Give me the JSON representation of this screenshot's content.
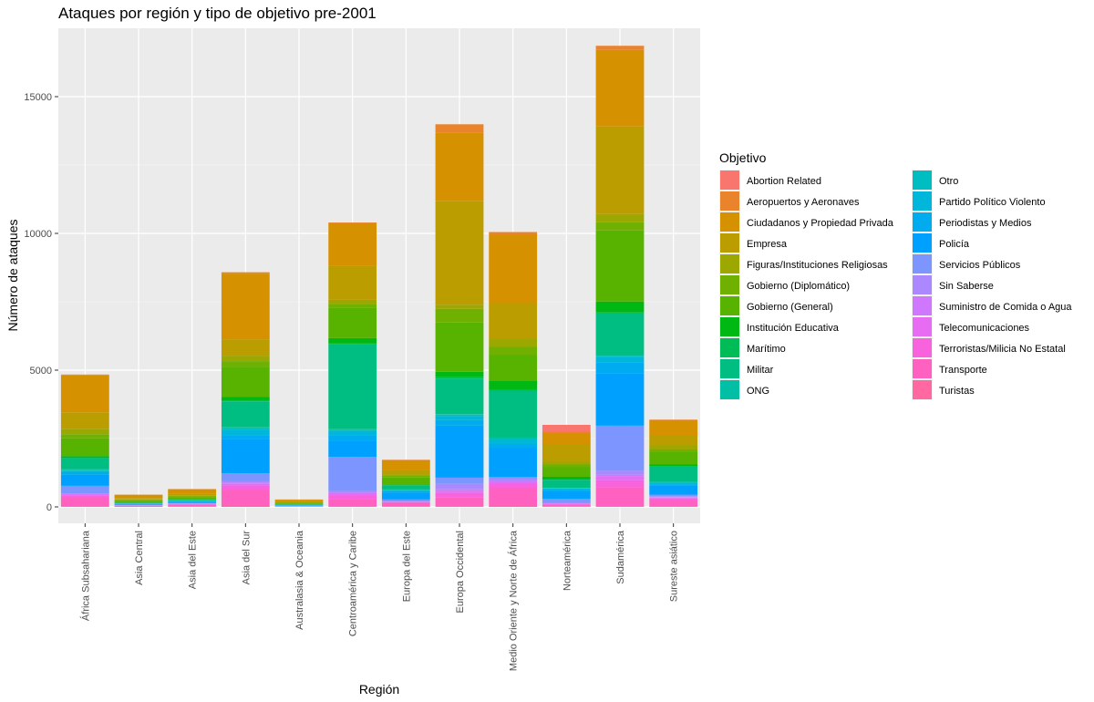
{
  "chart_data": {
    "type": "bar",
    "stacked": true,
    "title": "Ataques por región y tipo de objetivo pre-2001",
    "xlabel": "Región",
    "ylabel": "Número de ataques",
    "ylim": [
      -600,
      17500
    ],
    "yticks": [
      0,
      5000,
      10000,
      15000
    ],
    "grid": true,
    "legend_position": "right",
    "legend_title": "Objetivo",
    "categories": [
      "África Subsahariana",
      "Asia Central",
      "Asia del Este",
      "Asia del Sur",
      "Australasia & Oceania",
      "Centroamérica y Caribe",
      "Europa del Este",
      "Europa Occidental",
      "Medio Oriente y Norte de África",
      "Norteamérica",
      "Sudamérica",
      "Sureste asiático"
    ],
    "series": [
      {
        "name": "Abortion Related",
        "color": "#F8766D",
        "values": [
          0,
          0,
          0,
          0,
          0,
          0,
          0,
          0,
          0,
          250,
          0,
          0
        ]
      },
      {
        "name": "Aeropuertos y Aeronaves",
        "color": "#E9842C",
        "values": [
          30,
          5,
          10,
          50,
          5,
          30,
          20,
          300,
          100,
          50,
          150,
          40
        ]
      },
      {
        "name": "Ciudadanos y Propiedad Privada",
        "color": "#D69100",
        "values": [
          1350,
          120,
          150,
          2400,
          60,
          1550,
          370,
          2500,
          2500,
          400,
          2800,
          550
        ]
      },
      {
        "name": "Empresa",
        "color": "#BC9D00",
        "values": [
          600,
          50,
          90,
          600,
          40,
          1250,
          150,
          3800,
          1300,
          650,
          3200,
          350
        ]
      },
      {
        "name": "Figuras/Instituciones Religiosas",
        "color": "#9CA700",
        "values": [
          200,
          20,
          20,
          200,
          5,
          150,
          50,
          150,
          300,
          100,
          300,
          150
        ]
      },
      {
        "name": "Gobierno (Diplomático)",
        "color": "#6FB000",
        "values": [
          150,
          20,
          30,
          200,
          10,
          150,
          60,
          500,
          300,
          100,
          300,
          100
        ]
      },
      {
        "name": "Gobierno (General)",
        "color": "#57B300",
        "values": [
          650,
          60,
          80,
          1100,
          40,
          1100,
          250,
          1800,
          950,
          350,
          2600,
          450
        ]
      },
      {
        "name": "Institución Educativa",
        "color": "#00B813",
        "values": [
          60,
          10,
          10,
          150,
          5,
          200,
          30,
          200,
          300,
          100,
          400,
          50
        ]
      },
      {
        "name": "Marítimo",
        "color": "#00BC56",
        "values": [
          20,
          0,
          5,
          20,
          5,
          30,
          10,
          50,
          50,
          10,
          10,
          30
        ]
      },
      {
        "name": "Militar",
        "color": "#00BE82",
        "values": [
          400,
          30,
          40,
          950,
          20,
          3100,
          150,
          1300,
          1700,
          300,
          1550,
          550
        ]
      },
      {
        "name": "ONG",
        "color": "#00BFA4",
        "values": [
          40,
          5,
          5,
          30,
          5,
          20,
          5,
          20,
          50,
          10,
          30,
          20
        ]
      },
      {
        "name": "Otro",
        "color": "#00BDC2",
        "values": [
          30,
          5,
          5,
          50,
          5,
          40,
          10,
          50,
          50,
          10,
          50,
          20
        ]
      },
      {
        "name": "Partido Político Violento",
        "color": "#00B6DB",
        "values": [
          60,
          10,
          10,
          200,
          5,
          150,
          50,
          150,
          150,
          50,
          200,
          50
        ]
      },
      {
        "name": "Periodistas y Medios",
        "color": "#00ABEF",
        "values": [
          80,
          10,
          20,
          150,
          5,
          200,
          50,
          200,
          150,
          70,
          400,
          50
        ]
      },
      {
        "name": "Policía",
        "color": "#00A0FE",
        "values": [
          400,
          30,
          40,
          1250,
          20,
          600,
          250,
          1900,
          1050,
          250,
          1900,
          330
        ]
      },
      {
        "name": "Servicios Públicos",
        "color": "#7D96FF",
        "values": [
          270,
          20,
          20,
          280,
          10,
          1250,
          70,
          230,
          50,
          150,
          1650,
          60
        ]
      },
      {
        "name": "Sin Saberse",
        "color": "#AC88FF",
        "values": [
          30,
          5,
          10,
          80,
          5,
          50,
          10,
          200,
          100,
          20,
          150,
          30
        ]
      },
      {
        "name": "Suministro de Comida o Agua",
        "color": "#CF78FF",
        "values": [
          20,
          5,
          5,
          30,
          2,
          30,
          10,
          50,
          50,
          10,
          50,
          20
        ]
      },
      {
        "name": "Telecomunicaciones",
        "color": "#E76BF3",
        "values": [
          30,
          5,
          5,
          60,
          3,
          100,
          10,
          80,
          50,
          20,
          150,
          30
        ]
      },
      {
        "name": "Terroristas/Milicia No Estatal",
        "color": "#F962DD",
        "values": [
          70,
          10,
          10,
          180,
          5,
          120,
          20,
          150,
          150,
          30,
          250,
          60
        ]
      },
      {
        "name": "Transporte",
        "color": "#FF61C1",
        "values": [
          320,
          30,
          80,
          550,
          10,
          260,
          140,
          330,
          650,
          60,
          700,
          230
        ]
      },
      {
        "name": "Turistas",
        "color": "#FF68A1",
        "values": [
          30,
          0,
          10,
          50,
          5,
          20,
          10,
          30,
          50,
          10,
          20,
          20
        ]
      }
    ]
  }
}
